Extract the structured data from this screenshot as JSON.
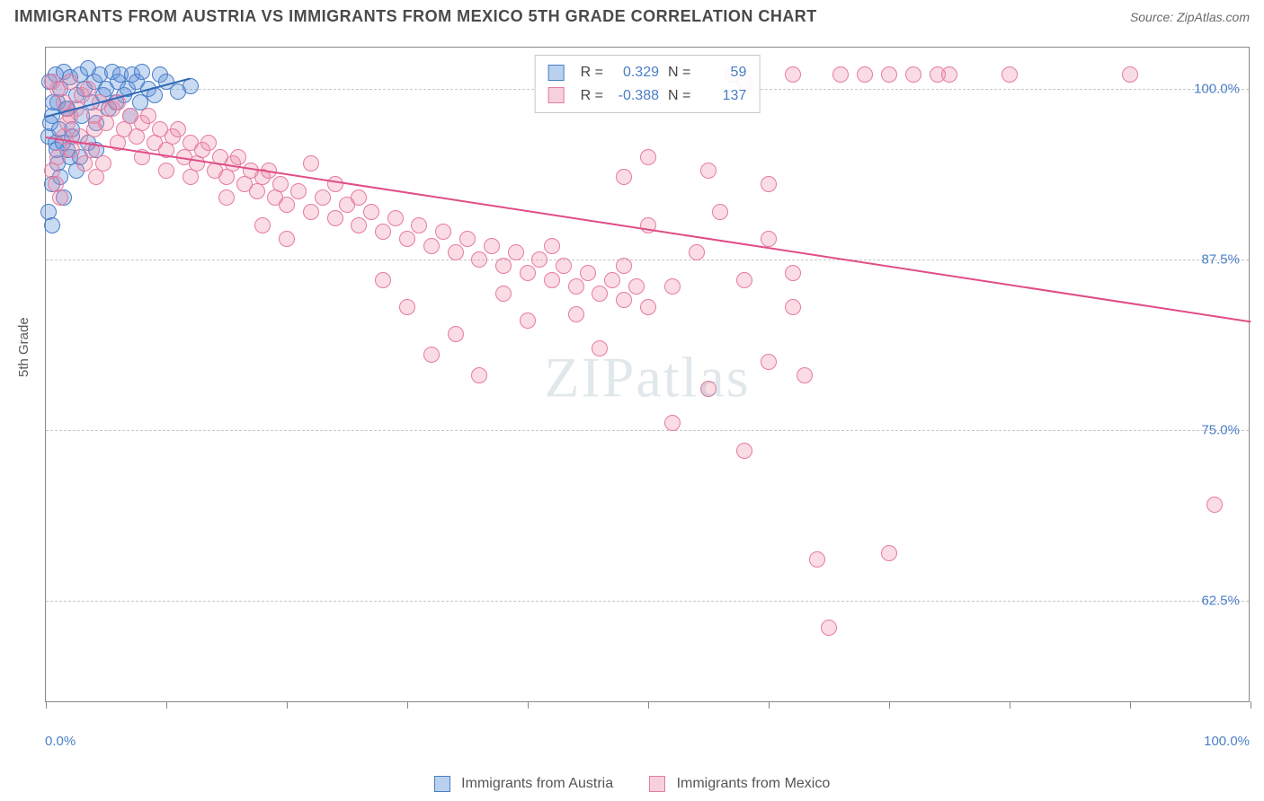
{
  "header": {
    "title": "IMMIGRANTS FROM AUSTRIA VS IMMIGRANTS FROM MEXICO 5TH GRADE CORRELATION CHART",
    "source": "Source: ZipAtlas.com"
  },
  "chart": {
    "type": "scatter",
    "ylabel": "5th Grade",
    "xlim": [
      0,
      100
    ],
    "ylim": [
      55,
      103
    ],
    "xtick_positions": [
      0,
      10,
      20,
      30,
      40,
      50,
      60,
      70,
      80,
      90,
      100
    ],
    "xtick_labels": {
      "0": "0.0%",
      "100": "100.0%"
    },
    "ytick_positions": [
      62.5,
      75.0,
      87.5,
      100.0
    ],
    "ytick_labels": [
      "62.5%",
      "75.0%",
      "87.5%",
      "100.0%"
    ],
    "background_color": "#ffffff",
    "grid_color": "#c8c8c8",
    "border_color": "#888888",
    "marker_radius": 9,
    "marker_stroke": 1.2,
    "series": [
      {
        "name": "Immigrants from Austria",
        "color_fill": "rgba(100,150,220,0.35)",
        "color_stroke": "#4a7ec7",
        "swatch_fill": "#b9d0ee",
        "swatch_border": "#4a7ec7",
        "R": "0.329",
        "N": "59",
        "trend": {
          "x1": 0,
          "y1": 98.0,
          "x2": 12,
          "y2": 100.8,
          "color": "#2e68b5"
        },
        "points": [
          [
            0.2,
            96.5
          ],
          [
            0.3,
            100.5
          ],
          [
            0.5,
            98.0
          ],
          [
            0.8,
            101.0
          ],
          [
            1.0,
            99.0
          ],
          [
            1.2,
            100.0
          ],
          [
            1.5,
            101.2
          ],
          [
            1.8,
            98.5
          ],
          [
            2.0,
            100.8
          ],
          [
            2.2,
            97.0
          ],
          [
            2.5,
            99.5
          ],
          [
            2.8,
            101.0
          ],
          [
            3.0,
            98.0
          ],
          [
            3.2,
            100.0
          ],
          [
            3.5,
            101.5
          ],
          [
            3.8,
            99.0
          ],
          [
            4.0,
            100.5
          ],
          [
            4.2,
            97.5
          ],
          [
            4.5,
            101.0
          ],
          [
            4.8,
            99.5
          ],
          [
            5.0,
            100.0
          ],
          [
            5.2,
            98.5
          ],
          [
            5.5,
            101.2
          ],
          [
            5.8,
            99.0
          ],
          [
            6.0,
            100.5
          ],
          [
            6.2,
            101.0
          ],
          [
            6.5,
            99.5
          ],
          [
            6.8,
            100.0
          ],
          [
            7.0,
            98.0
          ],
          [
            7.2,
            101.0
          ],
          [
            7.5,
            100.5
          ],
          [
            7.8,
            99.0
          ],
          [
            8.0,
            101.2
          ],
          [
            8.5,
            100.0
          ],
          [
            9.0,
            99.5
          ],
          [
            9.5,
            101.0
          ],
          [
            10.0,
            100.5
          ],
          [
            11.0,
            99.8
          ],
          [
            12.0,
            100.2
          ],
          [
            0.5,
            93.0
          ],
          [
            1.0,
            94.5
          ],
          [
            1.5,
            92.0
          ],
          [
            2.0,
            95.0
          ],
          [
            0.8,
            96.0
          ],
          [
            1.2,
            93.5
          ],
          [
            1.8,
            95.5
          ],
          [
            2.5,
            94.0
          ],
          [
            0.4,
            97.5
          ],
          [
            0.6,
            99.0
          ],
          [
            0.9,
            95.5
          ],
          [
            1.1,
            97.0
          ],
          [
            1.4,
            96.0
          ],
          [
            1.7,
            98.5
          ],
          [
            2.2,
            96.5
          ],
          [
            2.8,
            95.0
          ],
          [
            3.5,
            96.0
          ],
          [
            4.2,
            95.5
          ],
          [
            0.2,
            91.0
          ],
          [
            0.5,
            90.0
          ]
        ]
      },
      {
        "name": "Immigrants from Mexico",
        "color_fill": "rgba(238,140,170,0.30)",
        "color_stroke": "#e67ba0",
        "swatch_fill": "#f6d1dd",
        "swatch_border": "#e67ba0",
        "R": "-0.388",
        "N": "137",
        "trend": {
          "x1": 0,
          "y1": 96.5,
          "x2": 100,
          "y2": 83.0,
          "color": "#e04d87"
        },
        "points": [
          [
            0.5,
            100.5
          ],
          [
            1.0,
            100.0
          ],
          [
            1.5,
            99.0
          ],
          [
            2.0,
            100.5
          ],
          [
            2.5,
            98.5
          ],
          [
            3.0,
            99.5
          ],
          [
            3.5,
            100.0
          ],
          [
            4.0,
            98.0
          ],
          [
            4.5,
            99.0
          ],
          [
            5.0,
            97.5
          ],
          [
            5.5,
            98.5
          ],
          [
            6.0,
            99.0
          ],
          [
            6.5,
            97.0
          ],
          [
            7.0,
            98.0
          ],
          [
            7.5,
            96.5
          ],
          [
            8.0,
            97.5
          ],
          [
            8.5,
            98.0
          ],
          [
            9.0,
            96.0
          ],
          [
            9.5,
            97.0
          ],
          [
            10.0,
            95.5
          ],
          [
            10.5,
            96.5
          ],
          [
            11.0,
            97.0
          ],
          [
            11.5,
            95.0
          ],
          [
            12.0,
            96.0
          ],
          [
            12.5,
            94.5
          ],
          [
            13.0,
            95.5
          ],
          [
            13.5,
            96.0
          ],
          [
            14.0,
            94.0
          ],
          [
            14.5,
            95.0
          ],
          [
            15.0,
            93.5
          ],
          [
            15.5,
            94.5
          ],
          [
            16.0,
            95.0
          ],
          [
            16.5,
            93.0
          ],
          [
            17.0,
            94.0
          ],
          [
            17.5,
            92.5
          ],
          [
            18.0,
            93.5
          ],
          [
            18.5,
            94.0
          ],
          [
            19.0,
            92.0
          ],
          [
            19.5,
            93.0
          ],
          [
            20.0,
            91.5
          ],
          [
            21.0,
            92.5
          ],
          [
            22.0,
            91.0
          ],
          [
            23.0,
            92.0
          ],
          [
            24.0,
            90.5
          ],
          [
            25.0,
            91.5
          ],
          [
            26.0,
            90.0
          ],
          [
            27.0,
            91.0
          ],
          [
            28.0,
            89.5
          ],
          [
            29.0,
            90.5
          ],
          [
            30.0,
            89.0
          ],
          [
            31.0,
            90.0
          ],
          [
            32.0,
            88.5
          ],
          [
            33.0,
            89.5
          ],
          [
            34.0,
            88.0
          ],
          [
            35.0,
            89.0
          ],
          [
            36.0,
            87.5
          ],
          [
            37.0,
            88.5
          ],
          [
            38.0,
            87.0
          ],
          [
            39.0,
            88.0
          ],
          [
            40.0,
            86.5
          ],
          [
            41.0,
            87.5
          ],
          [
            42.0,
            86.0
          ],
          [
            43.0,
            87.0
          ],
          [
            44.0,
            85.5
          ],
          [
            45.0,
            86.5
          ],
          [
            46.0,
            85.0
          ],
          [
            47.0,
            86.0
          ],
          [
            48.0,
            84.5
          ],
          [
            49.0,
            85.5
          ],
          [
            50.0,
            84.0
          ],
          [
            28.0,
            86.0
          ],
          [
            30.0,
            84.0
          ],
          [
            32.0,
            80.5
          ],
          [
            34.0,
            82.0
          ],
          [
            36.0,
            79.0
          ],
          [
            38.0,
            85.0
          ],
          [
            40.0,
            83.0
          ],
          [
            42.0,
            88.5
          ],
          [
            44.0,
            83.5
          ],
          [
            46.0,
            81.0
          ],
          [
            48.0,
            87.0
          ],
          [
            50.0,
            90.0
          ],
          [
            52.0,
            85.5
          ],
          [
            54.0,
            88.0
          ],
          [
            56.0,
            91.0
          ],
          [
            58.0,
            86.0
          ],
          [
            60.0,
            89.0
          ],
          [
            62.0,
            84.0
          ],
          [
            52.0,
            75.5
          ],
          [
            55.0,
            78.0
          ],
          [
            58.0,
            73.5
          ],
          [
            60.0,
            80.0
          ],
          [
            48.0,
            93.5
          ],
          [
            50.0,
            95.0
          ],
          [
            55.0,
            94.0
          ],
          [
            57.0,
            101.0
          ],
          [
            58.0,
            100.5
          ],
          [
            60.0,
            93.0
          ],
          [
            62.0,
            86.5
          ],
          [
            63.0,
            79.0
          ],
          [
            64.0,
            65.5
          ],
          [
            65.0,
            60.5
          ],
          [
            70.0,
            66.0
          ],
          [
            62.0,
            101.0
          ],
          [
            66.0,
            101.0
          ],
          [
            68.0,
            101.0
          ],
          [
            70.0,
            101.0
          ],
          [
            72.0,
            101.0
          ],
          [
            74.0,
            101.0
          ],
          [
            75.0,
            101.0
          ],
          [
            80.0,
            101.0
          ],
          [
            90.0,
            101.0
          ],
          [
            97.0,
            69.5
          ],
          [
            22.0,
            94.5
          ],
          [
            24.0,
            93.0
          ],
          [
            26.0,
            92.0
          ],
          [
            18.0,
            90.0
          ],
          [
            20.0,
            89.0
          ],
          [
            15.0,
            92.0
          ],
          [
            12.0,
            93.5
          ],
          [
            10.0,
            94.0
          ],
          [
            8.0,
            95.0
          ],
          [
            6.0,
            96.0
          ],
          [
            4.0,
            97.0
          ],
          [
            2.0,
            98.0
          ],
          [
            1.0,
            95.0
          ],
          [
            0.5,
            94.0
          ],
          [
            0.8,
            93.0
          ],
          [
            1.2,
            92.0
          ],
          [
            1.5,
            96.5
          ],
          [
            1.8,
            97.5
          ],
          [
            2.2,
            95.5
          ],
          [
            2.8,
            96.5
          ],
          [
            3.2,
            94.5
          ],
          [
            3.8,
            95.5
          ],
          [
            4.2,
            93.5
          ],
          [
            4.8,
            94.5
          ]
        ]
      }
    ],
    "watermark": {
      "zip": "ZIP",
      "atlas": "atlas"
    },
    "legend_bottom": [
      {
        "label": "Immigrants from Austria",
        "fill": "#b9d0ee",
        "border": "#4a7ec7"
      },
      {
        "label": "Immigrants from Mexico",
        "fill": "#f6d1dd",
        "border": "#e67ba0"
      }
    ],
    "stats_labels": {
      "R": "R =",
      "N": "N ="
    }
  }
}
